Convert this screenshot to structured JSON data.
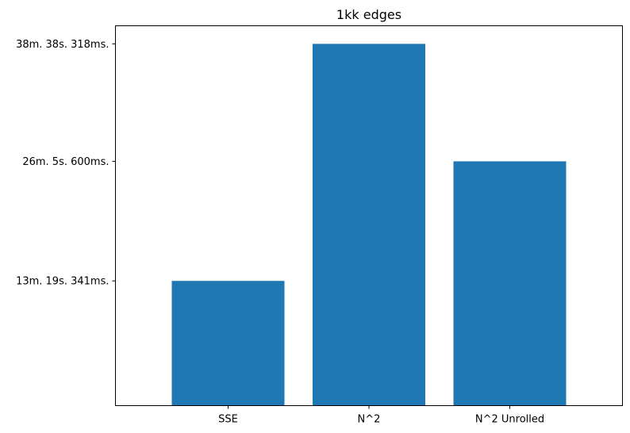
{
  "chart_data": {
    "type": "bar",
    "title": "1kk edges",
    "xlabel": "",
    "ylabel": "",
    "categories": [
      "SSE",
      "N^2",
      "N^2 Unrolled"
    ],
    "values_ms": [
      799341,
      2318318,
      1565600
    ],
    "ylim_ms": [
      0,
      2434234
    ],
    "yticks": [
      {
        "value_ms": 799341,
        "label": "13m. 19s. 341ms."
      },
      {
        "value_ms": 1565600,
        "label": "26m. 5s. 600ms."
      },
      {
        "value_ms": 2318318,
        "label": "38m. 38s. 318ms."
      }
    ],
    "bar_color": "#1f77b4",
    "grid": false,
    "legend": "none"
  }
}
